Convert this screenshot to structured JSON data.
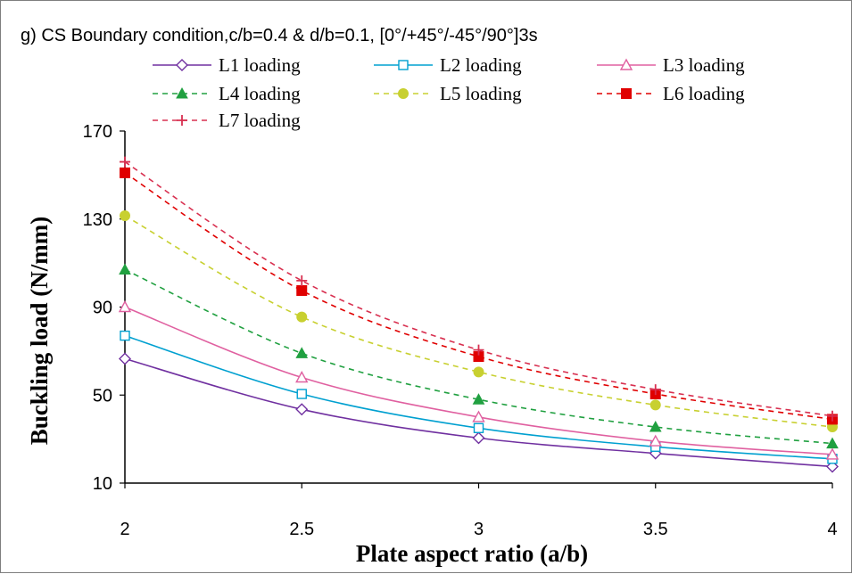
{
  "chart_data": {
    "type": "line",
    "title": "g) CS Boundary condition,c/b=0.4 & d/b=0.1, [0°/+45°/-45°/90°]3s",
    "xlabel": "Plate aspect ratio (a/b)",
    "ylabel": "Buckling load (N/mm)",
    "x": [
      2,
      2.5,
      3,
      3.5,
      4
    ],
    "x_tick_labels": [
      "2",
      "2.5",
      "3",
      "3.5",
      "4"
    ],
    "ylim": [
      10,
      170
    ],
    "y_ticks": [
      10,
      50,
      90,
      130,
      170
    ],
    "y_tick_labels": [
      "10",
      "50",
      "90",
      "130",
      "170"
    ],
    "grid": false,
    "legend_position": "top",
    "series": [
      {
        "name": "L1 loading",
        "values": [
          66.5,
          43.5,
          30.5,
          23.5,
          17.5
        ],
        "color": "#7030a0",
        "marker": "diamond",
        "dashed": false
      },
      {
        "name": "L2 loading",
        "values": [
          77,
          50.5,
          35,
          26.5,
          21
        ],
        "color": "#00a0d0",
        "marker": "square",
        "dashed": false
      },
      {
        "name": "L3 loading",
        "values": [
          90,
          58,
          40,
          29,
          23
        ],
        "color": "#e060a0",
        "marker": "triangle",
        "dashed": false
      },
      {
        "name": "L4 loading",
        "values": [
          107,
          69,
          48,
          35.5,
          28
        ],
        "color": "#20a040",
        "marker": "triangle-filled",
        "dashed": true
      },
      {
        "name": "L5 loading",
        "values": [
          131.5,
          85.5,
          60.5,
          45.5,
          35.5
        ],
        "color": "#c8d030",
        "marker": "circle-filled",
        "dashed": true
      },
      {
        "name": "L6 loading",
        "values": [
          151,
          97.5,
          67.5,
          50.5,
          39
        ],
        "color": "#e00000",
        "marker": "square-filled",
        "dashed": true
      },
      {
        "name": "L7 loading",
        "values": [
          156,
          102,
          70.5,
          52.5,
          40.5
        ],
        "color": "#d83050",
        "marker": "plus",
        "dashed": true
      }
    ]
  }
}
